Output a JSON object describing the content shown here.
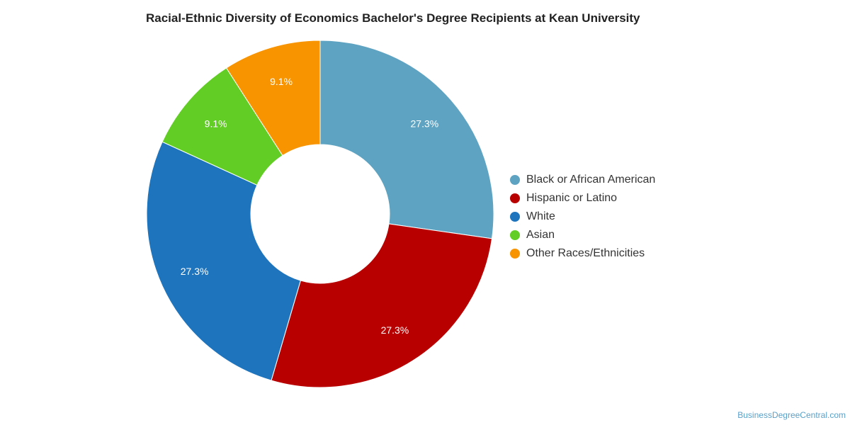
{
  "source_credit": "BusinessDegreeCentral.com",
  "chart_data": {
    "type": "pie",
    "donut": true,
    "title": "Racial-Ethnic Diversity of Economics Bachelor's Degree Recipients at Kean University",
    "legend_position": "right",
    "slices": [
      {
        "label": "Black or African American",
        "value": 27.3,
        "display": "27.3%",
        "color": "#5ea3c1"
      },
      {
        "label": "Hispanic or Latino",
        "value": 27.3,
        "display": "27.3%",
        "color": "#b90000"
      },
      {
        "label": "White",
        "value": 27.3,
        "display": "27.3%",
        "color": "#1f75bd"
      },
      {
        "label": "Asian",
        "value": 9.1,
        "display": "9.1%",
        "color": "#62cd24"
      },
      {
        "label": "Other Races/Ethnicities",
        "value": 9.1,
        "display": "9.1%",
        "color": "#f89400"
      }
    ]
  }
}
